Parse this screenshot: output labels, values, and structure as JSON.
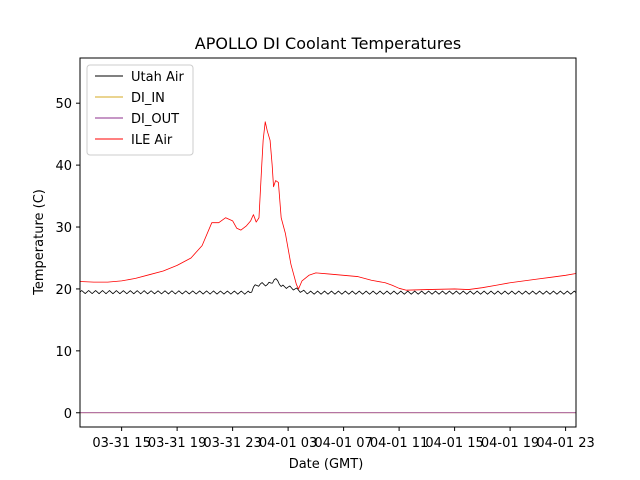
{
  "chart_data": {
    "type": "line",
    "title": "APOLLO DI Coolant Temperatures",
    "xlabel": "Date (GMT)",
    "ylabel": "Temperature (C)",
    "x_unit": "hours since 03-31 12:00 GMT",
    "xlim": [
      0,
      35.75
    ],
    "ylim": [
      -2.3,
      57.3
    ],
    "x_ticks": [
      {
        "value": 3,
        "label": "03-31 15"
      },
      {
        "value": 7,
        "label": "03-31 19"
      },
      {
        "value": 11,
        "label": "03-31 23"
      },
      {
        "value": 15,
        "label": "04-01 03"
      },
      {
        "value": 19,
        "label": "04-01 07"
      },
      {
        "value": 23,
        "label": "04-01 11"
      },
      {
        "value": 27,
        "label": "04-01 15"
      },
      {
        "value": 31,
        "label": "04-01 19"
      },
      {
        "value": 35,
        "label": "04-01 23"
      }
    ],
    "y_ticks": [
      0,
      10,
      20,
      30,
      40,
      50
    ],
    "legend": {
      "position": "top-left"
    },
    "series": [
      {
        "name": "Utah Air",
        "color": "#000000",
        "oscillation": 0.5,
        "oscillation_period": 0.5,
        "points": [
          [
            0,
            19.5
          ],
          [
            12.3,
            19.4
          ],
          [
            12.5,
            20.3
          ],
          [
            13.0,
            20.8
          ],
          [
            13.5,
            20.7
          ],
          [
            13.8,
            21.0
          ],
          [
            14.0,
            21.5
          ],
          [
            14.3,
            21.3
          ],
          [
            14.5,
            20.4
          ],
          [
            15.0,
            20.3
          ],
          [
            15.5,
            20.0
          ],
          [
            16.0,
            19.6
          ],
          [
            16.5,
            19.4
          ],
          [
            35.75,
            19.4
          ]
        ]
      },
      {
        "name": "DI_IN",
        "color": "#d4a820",
        "points": [
          [
            0,
            0
          ],
          [
            35.75,
            0
          ]
        ]
      },
      {
        "name": "DI_OUT",
        "color": "#8e2f8e",
        "points": [
          [
            0,
            0
          ],
          [
            35.75,
            0
          ]
        ]
      },
      {
        "name": "ILE Air",
        "color": "#ff0000",
        "points": [
          [
            0,
            21.2
          ],
          [
            1,
            21.1
          ],
          [
            2,
            21.1
          ],
          [
            3,
            21.3
          ],
          [
            4,
            21.7
          ],
          [
            5,
            22.3
          ],
          [
            6,
            22.9
          ],
          [
            7,
            23.8
          ],
          [
            8,
            25.0
          ],
          [
            8.8,
            27.0
          ],
          [
            9.5,
            30.7
          ],
          [
            10.0,
            30.7
          ],
          [
            10.5,
            31.5
          ],
          [
            11.0,
            31.0
          ],
          [
            11.3,
            29.8
          ],
          [
            11.6,
            29.5
          ],
          [
            12.0,
            30.2
          ],
          [
            12.3,
            31.0
          ],
          [
            12.5,
            32.0
          ],
          [
            12.7,
            30.8
          ],
          [
            12.9,
            31.5
          ],
          [
            13.1,
            40.0
          ],
          [
            13.2,
            44.0
          ],
          [
            13.35,
            47.0
          ],
          [
            13.5,
            45.5
          ],
          [
            13.7,
            44.0
          ],
          [
            13.85,
            40.0
          ],
          [
            13.95,
            36.5
          ],
          [
            14.1,
            37.5
          ],
          [
            14.3,
            37.2
          ],
          [
            14.5,
            31.5
          ],
          [
            14.8,
            29.0
          ],
          [
            15.2,
            24.0
          ],
          [
            15.6,
            20.7
          ],
          [
            15.75,
            20.0
          ],
          [
            16.0,
            21.3
          ],
          [
            16.5,
            22.2
          ],
          [
            17.0,
            22.6
          ],
          [
            18.0,
            22.4
          ],
          [
            19.0,
            22.2
          ],
          [
            20.0,
            22.0
          ],
          [
            21.0,
            21.4
          ],
          [
            22.0,
            21.0
          ],
          [
            22.5,
            20.6
          ],
          [
            23.0,
            20.1
          ],
          [
            23.5,
            19.8
          ],
          [
            25.0,
            19.9
          ],
          [
            27.0,
            20.0
          ],
          [
            28.0,
            19.9
          ],
          [
            29.0,
            20.2
          ],
          [
            30.0,
            20.6
          ],
          [
            31.0,
            21.0
          ],
          [
            32.0,
            21.3
          ],
          [
            33.0,
            21.6
          ],
          [
            34.0,
            21.9
          ],
          [
            35.0,
            22.2
          ],
          [
            35.75,
            22.5
          ]
        ]
      }
    ]
  }
}
